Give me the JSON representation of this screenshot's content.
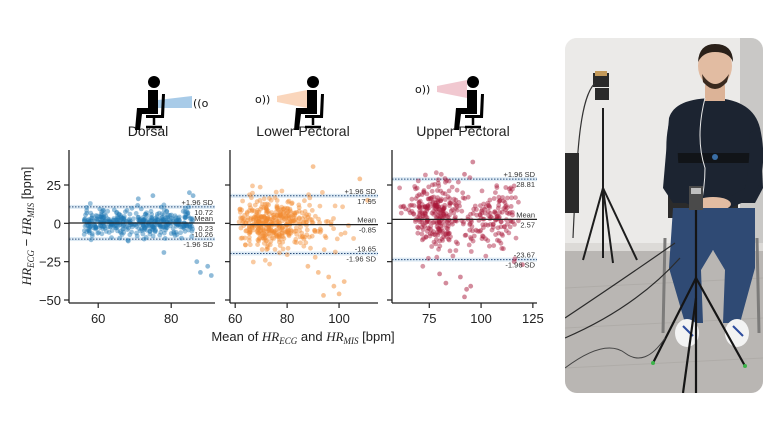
{
  "figure": {
    "xlabel_prefix": "Mean of ",
    "xlabel_hr1": "HR",
    "xlabel_sub1": "ECG",
    "xlabel_mid": " and ",
    "xlabel_hr2": "HR",
    "xlabel_sub2": "MIS",
    "xlabel_suffix": " [bpm]",
    "ylabel_hr1": "HR",
    "ylabel_sub1": "ECG",
    "ylabel_minus": " − ",
    "ylabel_hr2": "HR",
    "ylabel_sub2": "MIS",
    "ylabel_suffix": " [bpm]"
  },
  "photo": {
    "description": "Participant seated on chair wearing chest strap, with radar sensor on tripod in front and second sensor on tripod behind"
  },
  "chart_data": [
    {
      "type": "scatter",
      "title": "Dorsal",
      "color": "#2077b4",
      "sensor_icon": "radar-behind-icon",
      "xlabel": "Mean of HR_ECG and HR_MIS [bpm]",
      "ylabel": "HR_ECG − HR_MIS [bpm]",
      "xlim": [
        52,
        92
      ],
      "ylim": [
        -52,
        45
      ],
      "xticks": [
        60,
        80
      ],
      "yticks": [
        25,
        0,
        -25,
        -50
      ],
      "mean": 0.23,
      "upper_loa": 10.72,
      "lower_loa": -10.26,
      "labels": {
        "upper": "+1.96 SD",
        "mean": "Mean",
        "lower": "-1.96 SD"
      },
      "outliers": [
        [
          87,
          -25
        ],
        [
          88,
          -32
        ],
        [
          90,
          -28
        ],
        [
          91,
          -34
        ],
        [
          78,
          -19
        ],
        [
          85,
          20
        ],
        [
          86,
          18
        ],
        [
          75,
          18
        ],
        [
          71,
          16
        ]
      ]
    },
    {
      "type": "scatter",
      "title": "Lower Pectoral",
      "color": "#f28a2e",
      "sensor_icon": "radar-front-low-icon",
      "xlabel": "Mean of HR_ECG and HR_MIS [bpm]",
      "ylabel": "HR_ECG − HR_MIS [bpm]",
      "xlim": [
        58,
        115
      ],
      "ylim": [
        -52,
        45
      ],
      "xticks": [
        60,
        80,
        100
      ],
      "yticks": [
        25,
        0,
        -25,
        -50
      ],
      "mean": -0.85,
      "upper_loa": 17.95,
      "lower_loa": -19.65,
      "labels": {
        "upper": "+1.96 SD",
        "mean": "Mean",
        "lower": "-1.96 SD"
      },
      "outliers": [
        [
          90,
          37
        ],
        [
          108,
          29
        ],
        [
          111,
          15
        ],
        [
          92,
          -32
        ],
        [
          96,
          -35
        ],
        [
          98,
          -41
        ],
        [
          100,
          -46
        ],
        [
          94,
          -47
        ],
        [
          102,
          -38
        ],
        [
          88,
          -28
        ]
      ]
    },
    {
      "type": "scatter",
      "title": "Upper Pectoral",
      "color": "#a8183a",
      "sensor_icon": "radar-front-high-icon",
      "xlabel": "Mean of HR_ECG and HR_MIS [bpm]",
      "ylabel": "HR_ECG − HR_MIS [bpm]",
      "xlim": [
        57,
        127
      ],
      "ylim": [
        -52,
        45
      ],
      "xticks": [
        75,
        100,
        125
      ],
      "yticks": [
        25,
        0,
        -25,
        -50
      ],
      "mean": 2.57,
      "upper_loa": 28.81,
      "lower_loa": -23.67,
      "labels": {
        "upper": "+1.96 SD",
        "mean": "Mean",
        "lower": "-1.96 SD"
      },
      "outliers": [
        [
          96,
          40
        ],
        [
          92,
          32
        ],
        [
          80,
          -33
        ],
        [
          83,
          -39
        ],
        [
          90,
          -35
        ],
        [
          93,
          -43
        ],
        [
          95,
          -41
        ],
        [
          92,
          -48
        ],
        [
          120,
          -27
        ],
        [
          116,
          -25
        ]
      ]
    }
  ]
}
